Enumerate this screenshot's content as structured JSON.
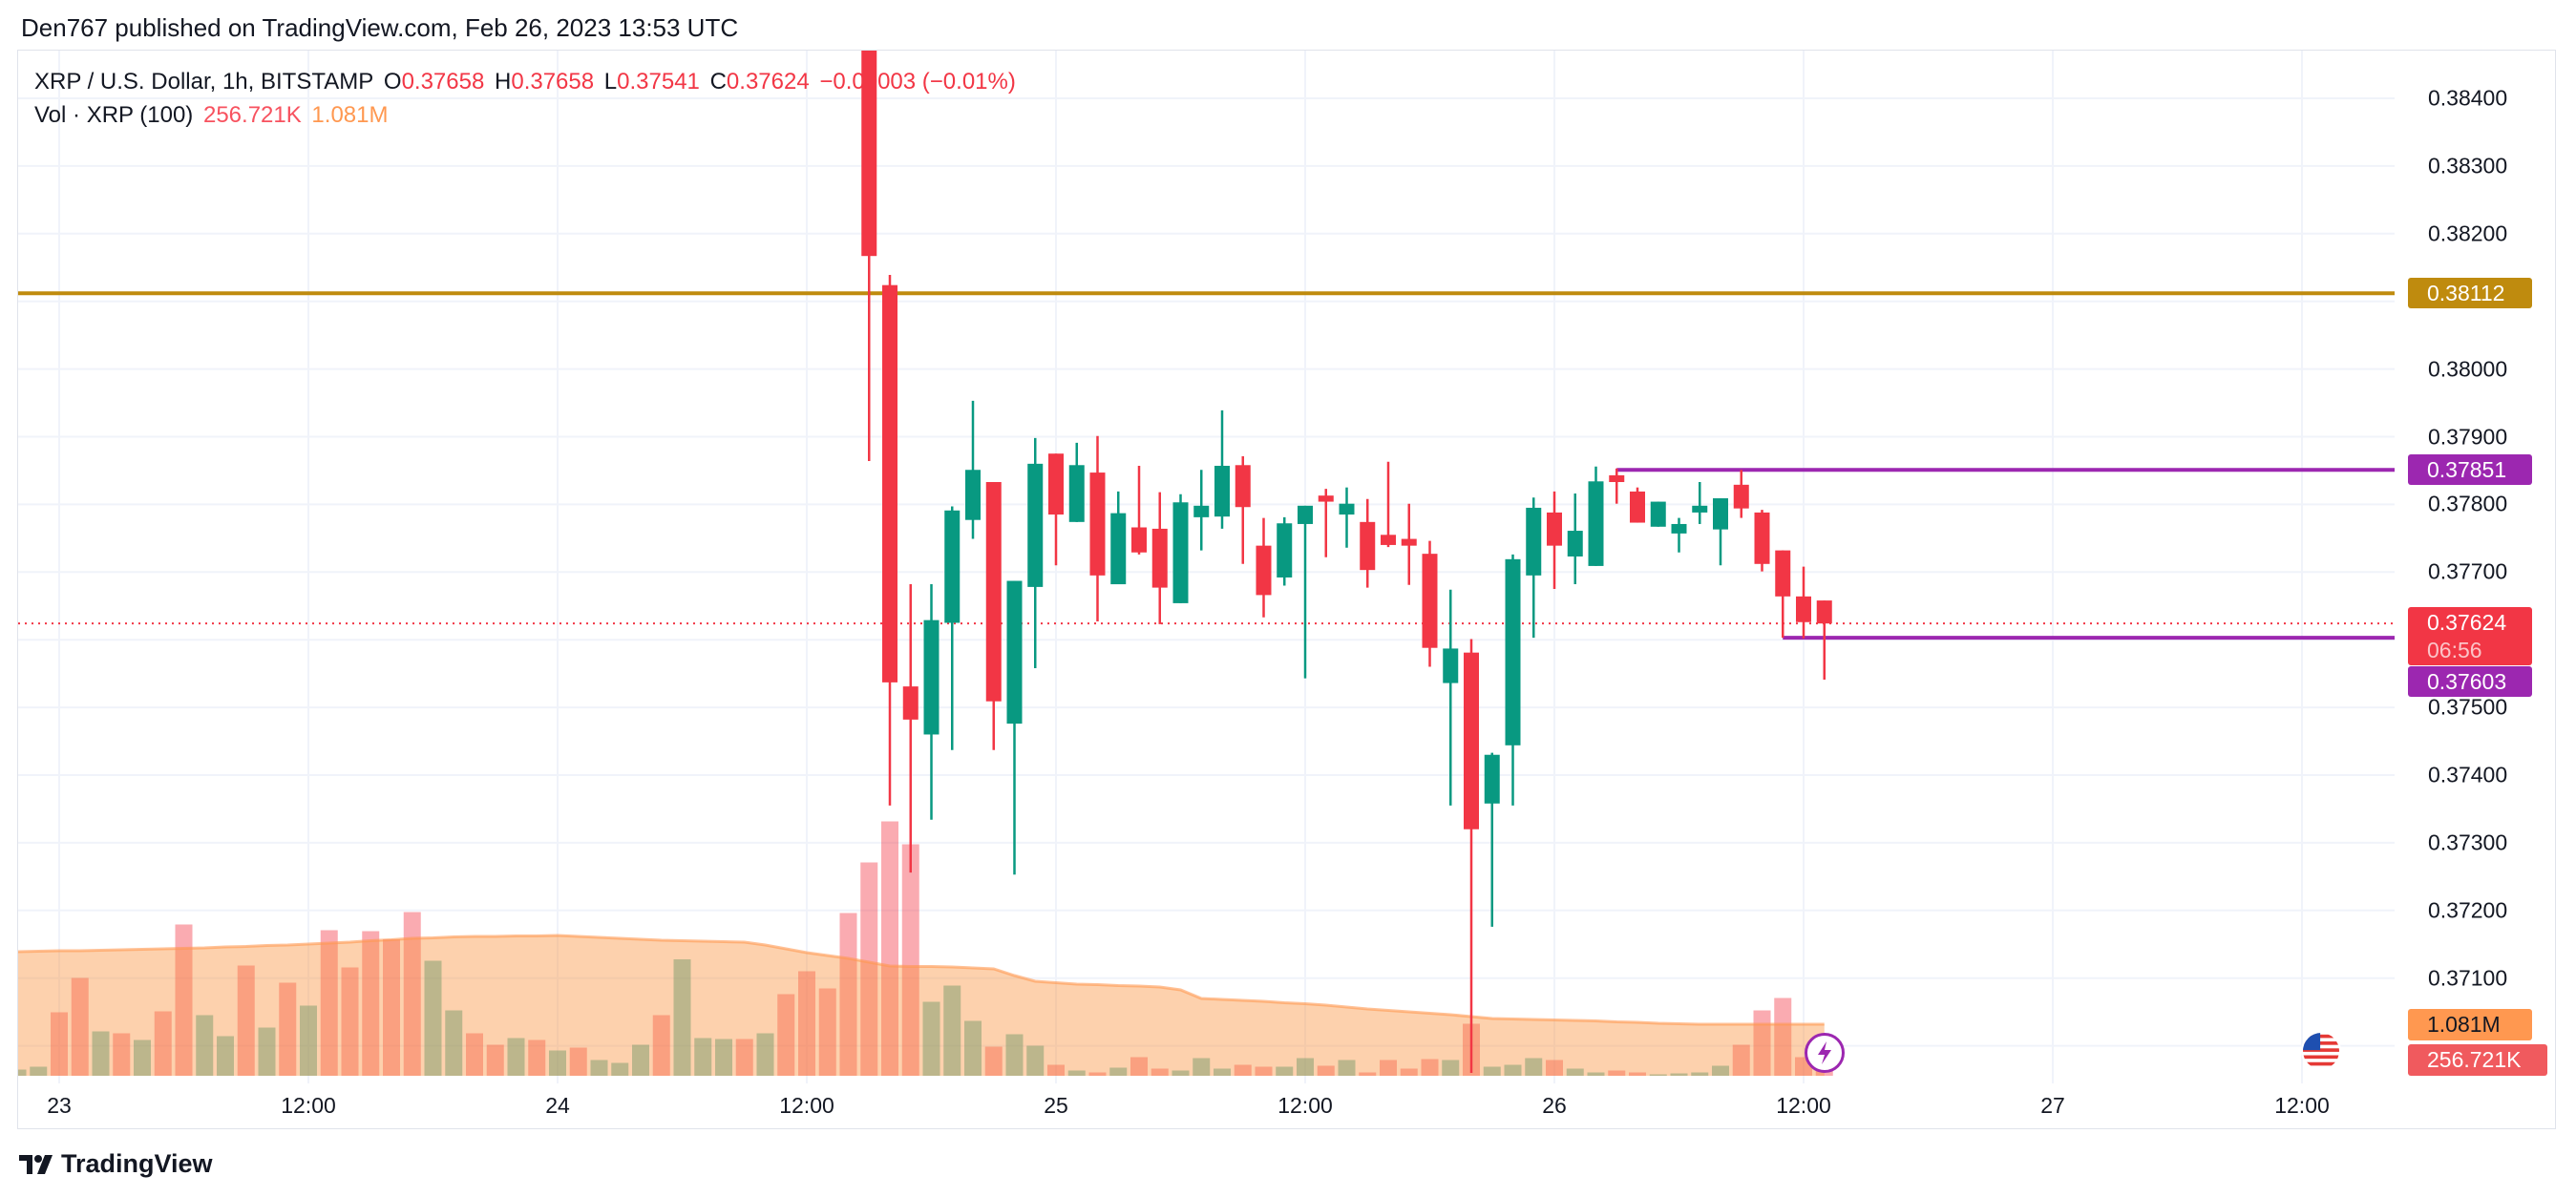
{
  "publish_line": "Den767 published on TradingView.com, Feb 26, 2023 13:53 UTC",
  "legend": {
    "symbol": "XRP / U.S. Dollar, 1h, BITSTAMP",
    "o_label": "O",
    "o": "0.37658",
    "h_label": "H",
    "h": "0.37658",
    "l_label": "L",
    "l": "0.37541",
    "c_label": "C",
    "c": "0.37624",
    "change": "−0.00003 (−0.01%)",
    "vol_label": "Vol · XRP (100)",
    "vol_value": "256.721K",
    "vol_ma": "1.081M"
  },
  "badges": {
    "resistance": "0.38112",
    "range_high": "0.37851",
    "last_price": "0.37624",
    "countdown": "06:56",
    "range_low": "0.37603",
    "vol_ma": "1.081M",
    "vol": "256.721K"
  },
  "logo": "TradingView",
  "colors": {
    "up": "#089981",
    "down": "#f23645",
    "resistance": "#bf8b0e",
    "range": "#9c27b0",
    "vol_ma": "#ff9850"
  },
  "icons": {
    "event": "lightning-icon",
    "flag": "us-flag-icon"
  },
  "chart_data": {
    "type": "candlestick",
    "symbol": "XRP / U.S. Dollar",
    "interval": "1h",
    "y_ticks": [
      "0.38400",
      "0.38300",
      "0.38200",
      "0.38000",
      "0.37900",
      "0.37800",
      "0.37700",
      "0.37500",
      "0.37400",
      "0.37300",
      "0.37200",
      "0.37100"
    ],
    "x_ticks": [
      "23",
      "12:00",
      "24",
      "12:00",
      "25",
      "12:00",
      "26",
      "12:00",
      "27",
      "12:00"
    ],
    "horizontal_lines": [
      {
        "price": 0.38112,
        "color": "#bf8b0e",
        "from": "02-22 22:00"
      },
      {
        "price": 0.37851,
        "color": "#9c27b0",
        "from": "02-26 03:00"
      },
      {
        "price": 0.37603,
        "color": "#9c27b0",
        "from": "02-26 11:00"
      }
    ],
    "last_price_line": 0.37624,
    "candles": [
      [
        "02-24 15:00",
        0.387,
        0.3875,
        0.37864,
        0.38167
      ],
      [
        "02-24 16:00",
        0.38124,
        0.38139,
        0.37355,
        0.37537
      ],
      [
        "02-24 17:00",
        0.37531,
        0.37682,
        0.37256,
        0.37482
      ],
      [
        "02-24 18:00",
        0.3746,
        0.37682,
        0.37334,
        0.37629
      ],
      [
        "02-24 19:00",
        0.37625,
        0.37797,
        0.37437,
        0.37791
      ],
      [
        "02-24 20:00",
        0.37777,
        0.37953,
        0.37749,
        0.37851
      ],
      [
        "02-24 21:00",
        0.37833,
        0.37833,
        0.37437,
        0.37509
      ],
      [
        "02-24 22:00",
        0.37476,
        0.37687,
        0.37253,
        0.37687
      ],
      [
        "02-24 23:00",
        0.37678,
        0.37898,
        0.37558,
        0.3786
      ],
      [
        "02-25 00:00",
        0.37875,
        0.37875,
        0.3771,
        0.37785
      ],
      [
        "02-25 01:00",
        0.37774,
        0.37891,
        0.37774,
        0.37858
      ],
      [
        "02-25 02:00",
        0.37847,
        0.37901,
        0.37627,
        0.37695
      ],
      [
        "02-25 03:00",
        0.37682,
        0.37819,
        0.37682,
        0.37787
      ],
      [
        "02-25 04:00",
        0.37766,
        0.37857,
        0.37726,
        0.37729
      ],
      [
        "02-25 05:00",
        0.37764,
        0.37818,
        0.37623,
        0.37677
      ],
      [
        "02-25 06:00",
        0.37654,
        0.37815,
        0.37654,
        0.37803
      ],
      [
        "02-25 07:00",
        0.37781,
        0.37851,
        0.37732,
        0.37798
      ],
      [
        "02-25 08:00",
        0.37782,
        0.37939,
        0.37764,
        0.37857
      ],
      [
        "02-25 09:00",
        0.37858,
        0.37871,
        0.37712,
        0.37796
      ],
      [
        "02-25 10:00",
        0.37739,
        0.3778,
        0.37633,
        0.37666
      ],
      [
        "02-25 11:00",
        0.37692,
        0.37781,
        0.3768,
        0.37772
      ],
      [
        "02-25 12:00",
        0.37771,
        0.37798,
        0.37543,
        0.37798
      ],
      [
        "02-25 13:00",
        0.37813,
        0.37823,
        0.37722,
        0.37804
      ],
      [
        "02-25 14:00",
        0.37785,
        0.37825,
        0.37736,
        0.37801
      ],
      [
        "02-25 15:00",
        0.37774,
        0.37808,
        0.37677,
        0.37703
      ],
      [
        "02-25 16:00",
        0.37755,
        0.37863,
        0.37737,
        0.3774
      ],
      [
        "02-25 17:00",
        0.37749,
        0.37801,
        0.37681,
        0.37739
      ],
      [
        "02-25 18:00",
        0.37727,
        0.37746,
        0.3756,
        0.37588
      ],
      [
        "02-25 19:00",
        0.37536,
        0.37674,
        0.37355,
        0.37587
      ],
      [
        "02-25 20:00",
        0.37581,
        0.37601,
        0.3696,
        0.3732
      ],
      [
        "02-25 21:00",
        0.37358,
        0.37433,
        0.37176,
        0.3743
      ],
      [
        "02-25 22:00",
        0.37444,
        0.37726,
        0.37355,
        0.37719
      ],
      [
        "02-25 23:00",
        0.37695,
        0.3781,
        0.37603,
        0.37795
      ],
      [
        "02-26 00:00",
        0.37788,
        0.37819,
        0.37675,
        0.37739
      ],
      [
        "02-26 01:00",
        0.37723,
        0.37816,
        0.37682,
        0.37761
      ],
      [
        "02-26 02:00",
        0.37709,
        0.37856,
        0.37709,
        0.37834
      ],
      [
        "02-26 03:00",
        0.37843,
        0.37853,
        0.37801,
        0.37833
      ],
      [
        "02-26 04:00",
        0.37819,
        0.37825,
        0.37773,
        0.37773
      ],
      [
        "02-26 05:00",
        0.37767,
        0.37804,
        0.37767,
        0.37804
      ],
      [
        "02-26 06:00",
        0.37757,
        0.3778,
        0.37729,
        0.37771
      ],
      [
        "02-26 07:00",
        0.37788,
        0.37833,
        0.37771,
        0.37798
      ],
      [
        "02-26 08:00",
        0.37763,
        0.37809,
        0.3771,
        0.37809
      ],
      [
        "02-26 09:00",
        0.37829,
        0.37851,
        0.3778,
        0.37794
      ],
      [
        "02-26 10:00",
        0.37788,
        0.37792,
        0.37701,
        0.37712
      ],
      [
        "02-26 11:00",
        0.37732,
        0.37732,
        0.37603,
        0.37664
      ],
      [
        "02-26 12:00",
        0.37664,
        0.37708,
        0.37602,
        0.37626
      ],
      [
        "02-26 13:00",
        0.37658,
        0.37658,
        0.37541,
        0.37624
      ]
    ],
    "volume_unit": "M",
    "volume": [
      [
        "02-22 22:00",
        0.13,
        "up",
        2.6
      ],
      [
        "02-22 23:00",
        0.19,
        "up",
        2.61
      ],
      [
        "02-23 00:00",
        1.33,
        "down",
        2.62
      ],
      [
        "02-23 01:00",
        2.05,
        "down",
        2.62
      ],
      [
        "02-23 02:00",
        0.93,
        "up",
        2.63
      ],
      [
        "02-23 03:00",
        0.89,
        "down",
        2.64
      ],
      [
        "02-23 04:00",
        0.75,
        "up",
        2.65
      ],
      [
        "02-23 05:00",
        1.35,
        "down",
        2.66
      ],
      [
        "02-23 06:00",
        3.17,
        "down",
        2.67
      ],
      [
        "02-23 07:00",
        1.27,
        "up",
        2.68
      ],
      [
        "02-23 08:00",
        0.83,
        "up",
        2.7
      ],
      [
        "02-23 09:00",
        2.31,
        "down",
        2.71
      ],
      [
        "02-23 10:00",
        1.01,
        "up",
        2.73
      ],
      [
        "02-23 11:00",
        1.95,
        "down",
        2.74
      ],
      [
        "02-23 12:00",
        1.47,
        "up",
        2.76
      ],
      [
        "02-23 13:00",
        3.05,
        "down",
        2.78
      ],
      [
        "02-23 14:00",
        2.27,
        "down",
        2.8
      ],
      [
        "02-23 15:00",
        3.03,
        "down",
        2.83
      ],
      [
        "02-23 16:00",
        2.86,
        "down",
        2.85
      ],
      [
        "02-23 17:00",
        3.43,
        "down",
        2.88
      ],
      [
        "02-23 18:00",
        2.41,
        "up",
        2.89
      ],
      [
        "02-23 19:00",
        1.37,
        "up",
        2.91
      ],
      [
        "02-23 20:00",
        0.89,
        "down",
        2.92
      ],
      [
        "02-23 21:00",
        0.65,
        "down",
        2.92
      ],
      [
        "02-23 22:00",
        0.79,
        "up",
        2.93
      ],
      [
        "02-23 23:00",
        0.75,
        "down",
        2.93
      ],
      [
        "02-24 00:00",
        0.53,
        "up",
        2.94
      ],
      [
        "02-24 01:00",
        0.59,
        "down",
        2.92
      ],
      [
        "02-24 02:00",
        0.33,
        "up",
        2.9
      ],
      [
        "02-24 03:00",
        0.27,
        "up",
        2.88
      ],
      [
        "02-24 04:00",
        0.65,
        "up",
        2.86
      ],
      [
        "02-24 05:00",
        1.27,
        "down",
        2.84
      ],
      [
        "02-24 06:00",
        2.44,
        "up",
        2.83
      ],
      [
        "02-24 07:00",
        0.79,
        "up",
        2.82
      ],
      [
        "02-24 08:00",
        0.77,
        "up",
        2.81
      ],
      [
        "02-24 09:00",
        0.77,
        "down",
        2.8
      ],
      [
        "02-24 10:00",
        0.89,
        "up",
        2.74
      ],
      [
        "02-24 11:00",
        1.71,
        "down",
        2.66
      ],
      [
        "02-24 12:00",
        2.19,
        "down",
        2.58
      ],
      [
        "02-24 13:00",
        1.83,
        "down",
        2.52
      ],
      [
        "02-24 14:00",
        3.41,
        "down",
        2.46
      ],
      [
        "02-24 15:00",
        4.47,
        "down",
        2.38
      ],
      [
        "02-24 16:00",
        5.33,
        "down",
        2.3
      ],
      [
        "02-24 17:00",
        4.85,
        "down",
        2.29
      ],
      [
        "02-24 18:00",
        1.55,
        "up",
        2.29
      ],
      [
        "02-24 19:00",
        1.89,
        "up",
        2.28
      ],
      [
        "02-24 20:00",
        1.15,
        "up",
        2.26
      ],
      [
        "02-24 21:00",
        0.61,
        "down",
        2.24
      ],
      [
        "02-24 22:00",
        0.87,
        "up",
        2.1
      ],
      [
        "02-24 23:00",
        0.63,
        "up",
        1.98
      ],
      [
        "02-25 00:00",
        0.23,
        "down",
        1.95
      ],
      [
        "02-25 01:00",
        0.11,
        "up",
        1.92
      ],
      [
        "02-25 02:00",
        0.07,
        "down",
        1.91
      ],
      [
        "02-25 03:00",
        0.17,
        "up",
        1.89
      ],
      [
        "02-25 04:00",
        0.39,
        "down",
        1.88
      ],
      [
        "02-25 05:00",
        0.15,
        "down",
        1.86
      ],
      [
        "02-25 06:00",
        0.11,
        "up",
        1.8
      ],
      [
        "02-25 07:00",
        0.37,
        "up",
        1.62
      ],
      [
        "02-25 08:00",
        0.15,
        "up",
        1.6
      ],
      [
        "02-25 09:00",
        0.23,
        "down",
        1.58
      ],
      [
        "02-25 10:00",
        0.19,
        "down",
        1.56
      ],
      [
        "02-25 11:00",
        0.19,
        "up",
        1.53
      ],
      [
        "02-25 12:00",
        0.37,
        "up",
        1.51
      ],
      [
        "02-25 13:00",
        0.21,
        "down",
        1.48
      ],
      [
        "02-25 14:00",
        0.33,
        "up",
        1.44
      ],
      [
        "02-25 15:00",
        0.07,
        "down",
        1.4
      ],
      [
        "02-25 16:00",
        0.33,
        "down",
        1.37
      ],
      [
        "02-25 17:00",
        0.15,
        "down",
        1.34
      ],
      [
        "02-25 18:00",
        0.35,
        "down",
        1.31
      ],
      [
        "02-25 19:00",
        0.33,
        "up",
        1.28
      ],
      [
        "02-25 20:00",
        1.09,
        "down",
        1.24
      ],
      [
        "02-25 21:00",
        0.19,
        "up",
        1.2
      ],
      [
        "02-25 22:00",
        0.23,
        "up",
        1.19
      ],
      [
        "02-25 23:00",
        0.37,
        "up",
        1.18
      ],
      [
        "02-26 00:00",
        0.33,
        "down",
        1.17
      ],
      [
        "02-26 01:00",
        0.15,
        "up",
        1.16
      ],
      [
        "02-26 02:00",
        0.07,
        "up",
        1.15
      ],
      [
        "02-26 03:00",
        0.11,
        "down",
        1.13
      ],
      [
        "02-26 04:00",
        0.07,
        "down",
        1.12
      ],
      [
        "02-26 05:00",
        0.03,
        "up",
        1.1
      ],
      [
        "02-26 06:00",
        0.05,
        "up",
        1.09
      ],
      [
        "02-26 07:00",
        0.07,
        "up",
        1.08
      ],
      [
        "02-26 08:00",
        0.21,
        "up",
        1.08
      ],
      [
        "02-26 09:00",
        0.65,
        "down",
        1.08
      ],
      [
        "02-26 10:00",
        1.37,
        "down",
        1.08
      ],
      [
        "02-26 11:00",
        1.63,
        "down",
        1.08
      ],
      [
        "02-26 12:00",
        0.39,
        "down",
        1.08
      ],
      [
        "02-26 13:00",
        0.257,
        "down",
        1.081
      ]
    ]
  }
}
